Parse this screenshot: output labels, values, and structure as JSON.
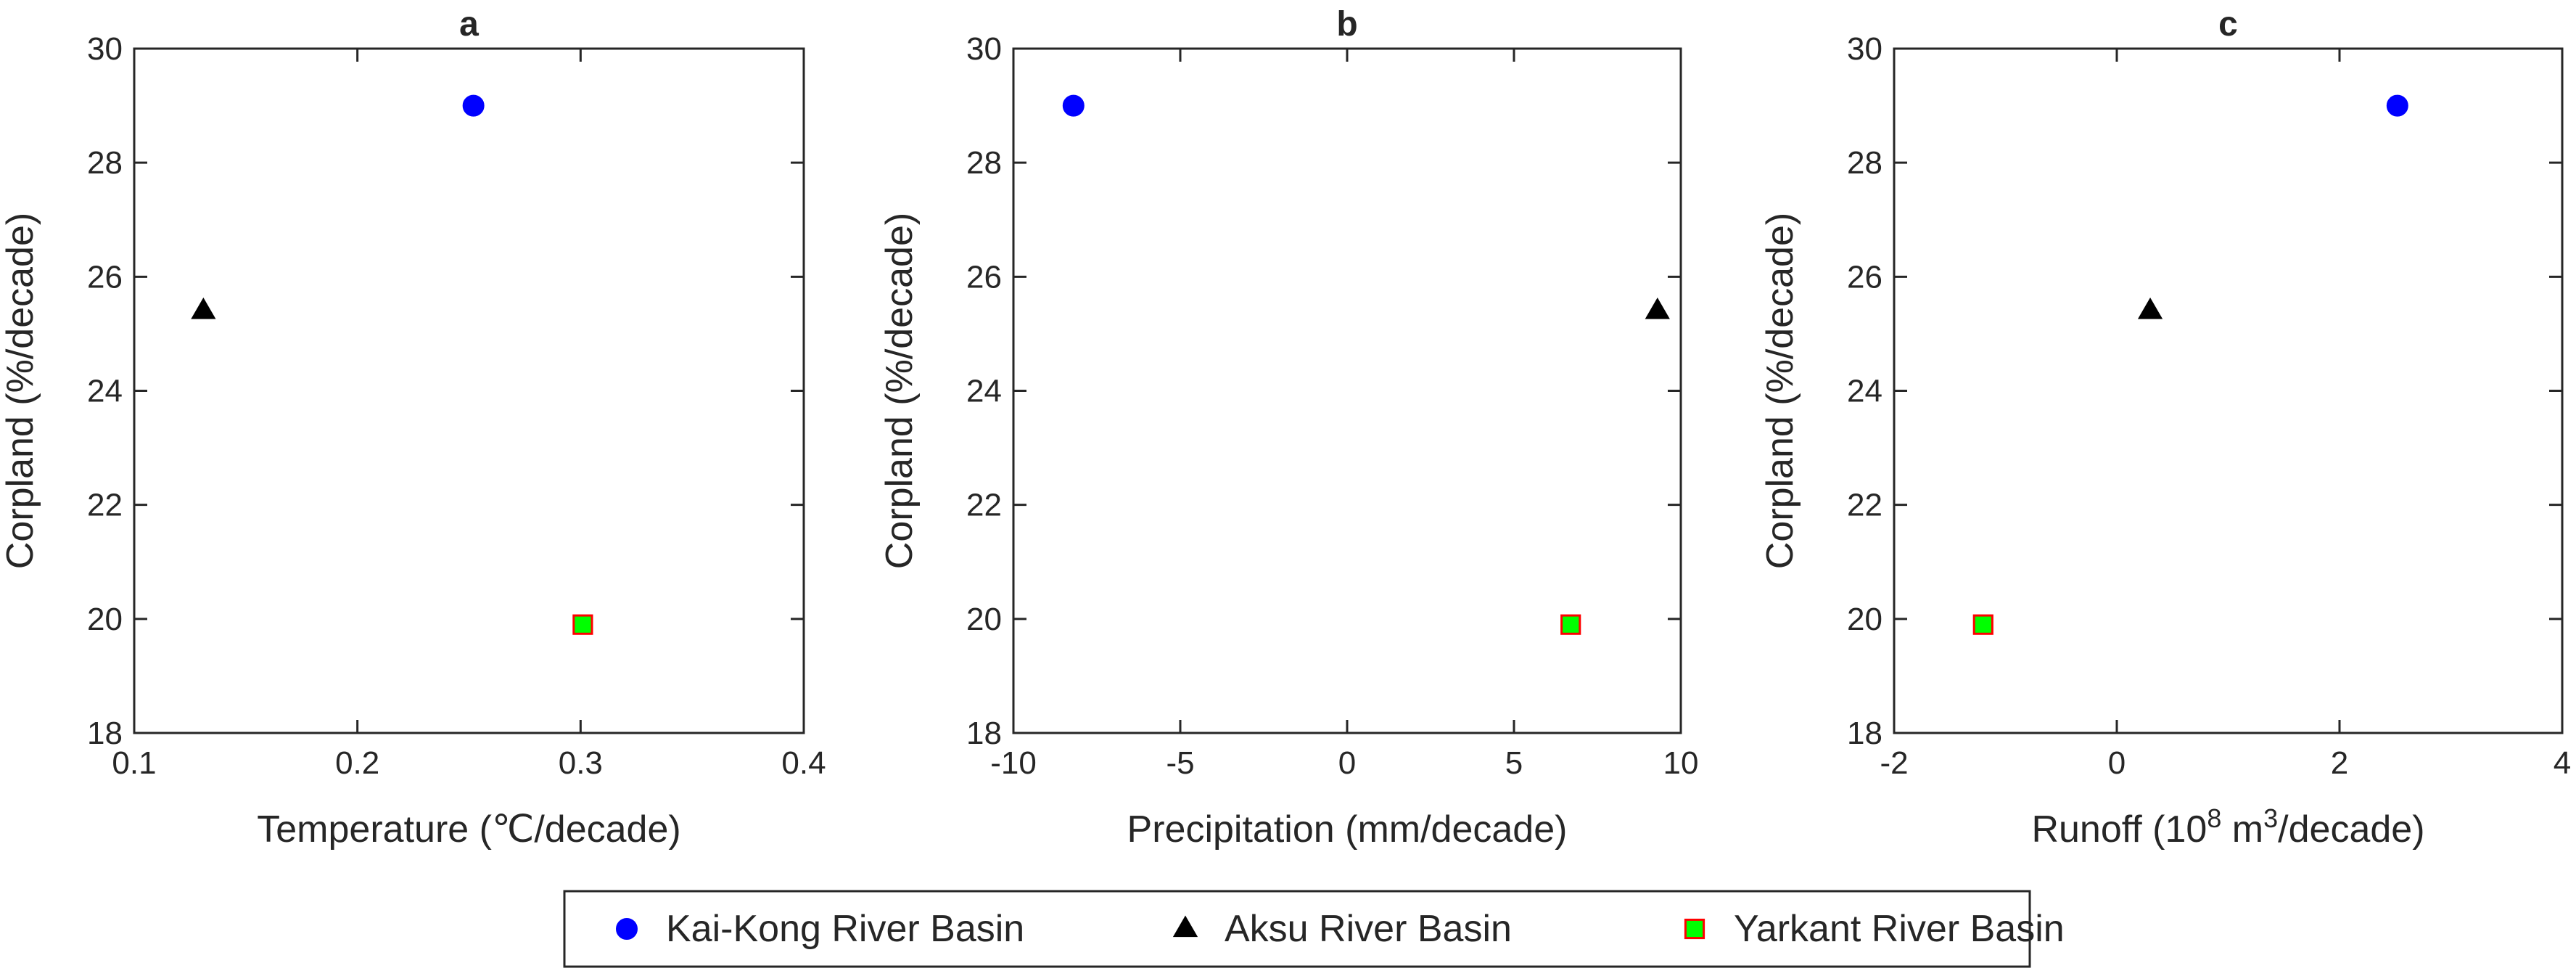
{
  "chart_data": [
    {
      "type": "scatter",
      "title": "a",
      "xlabel": "Temperature (℃/decade)",
      "ylabel": "Corpland (%/decade)",
      "xlim": [
        0.1,
        0.4
      ],
      "ylim": [
        18,
        30
      ],
      "x_ticks": [
        "0.1",
        "0.2",
        "0.3",
        "0.4"
      ],
      "y_ticks": [
        "18",
        "20",
        "22",
        "24",
        "26",
        "28",
        "30"
      ],
      "series": [
        {
          "name": "Kai-Kong River Basin",
          "x": 0.252,
          "y": 29.0
        },
        {
          "name": "Aksu River Basin",
          "x": 0.131,
          "y": 25.4
        },
        {
          "name": "Yarkant River Basin",
          "x": 0.301,
          "y": 19.9
        }
      ]
    },
    {
      "type": "scatter",
      "title": "b",
      "xlabel": "Precipitation (mm/decade)",
      "ylabel": "Corpland (%/decade)",
      "xlim": [
        -10,
        10
      ],
      "ylim": [
        18,
        30
      ],
      "x_ticks": [
        "-10",
        "-5",
        "0",
        "5",
        "10"
      ],
      "y_ticks": [
        "18",
        "20",
        "22",
        "24",
        "26",
        "28",
        "30"
      ],
      "series": [
        {
          "name": "Kai-Kong River Basin",
          "x": -8.2,
          "y": 29.0
        },
        {
          "name": "Aksu River Basin",
          "x": 9.3,
          "y": 25.4
        },
        {
          "name": "Yarkant River Basin",
          "x": 6.7,
          "y": 19.9
        }
      ]
    },
    {
      "type": "scatter",
      "title": "c",
      "xlabel_main": "Runoff (10",
      "xlabel_sup": "8",
      "xlabel_mid": " m",
      "xlabel_sup2": "3",
      "xlabel_end": "/decade)",
      "ylabel": "Corpland (%/decade)",
      "xlim": [
        -2,
        4
      ],
      "ylim": [
        18,
        30
      ],
      "x_ticks": [
        "-2",
        "0",
        "2",
        "4"
      ],
      "y_ticks": [
        "18",
        "20",
        "22",
        "24",
        "26",
        "28",
        "30"
      ],
      "series": [
        {
          "name": "Kai-Kong River Basin",
          "x": 2.52,
          "y": 29.0
        },
        {
          "name": "Aksu River Basin",
          "x": 0.3,
          "y": 25.4
        },
        {
          "name": "Yarkant River Basin",
          "x": -1.2,
          "y": 19.9
        }
      ]
    }
  ],
  "legend": {
    "placement": "bottom-center",
    "items": [
      {
        "label": "Kai-Kong River Basin",
        "marker": "circle",
        "color": "#0000ff"
      },
      {
        "label": "Aksu River Basin",
        "marker": "triangle",
        "color": "#000000"
      },
      {
        "label": "Yarkant River Basin",
        "marker": "square",
        "color": "#00ff00",
        "edge": "#ff0000"
      }
    ]
  },
  "colors": {
    "kai_kong": "#0000ff",
    "aksu": "#000000",
    "yarkant_fill": "#00ff00",
    "yarkant_edge": "#ff0000",
    "axis": "#262626"
  }
}
